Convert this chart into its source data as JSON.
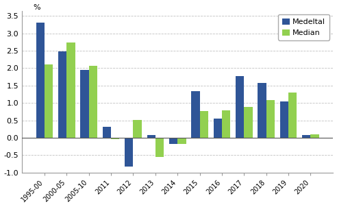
{
  "categories": [
    "1995-00",
    "2000-05",
    "2005-10",
    "2011",
    "2012",
    "2013",
    "2014",
    "2015",
    "2016",
    "2017",
    "2018",
    "2019",
    "2020"
  ],
  "medeltal": [
    3.3,
    2.47,
    1.95,
    0.32,
    -0.82,
    0.07,
    -0.18,
    1.33,
    0.54,
    1.77,
    1.58,
    1.04,
    0.07
  ],
  "median": [
    2.1,
    2.73,
    2.07,
    -0.05,
    0.52,
    -0.55,
    -0.17,
    0.77,
    0.78,
    0.88,
    1.08,
    1.3,
    0.1
  ],
  "medeltal_color": "#2f5597",
  "median_color": "#92d050",
  "pct_label": "%",
  "ylim": [
    -1.0,
    3.65
  ],
  "yticks": [
    -1.0,
    -0.5,
    0.0,
    0.5,
    1.0,
    1.5,
    2.0,
    2.5,
    3.0,
    3.5
  ],
  "ytick_labels": [
    "-1.0",
    "-0.5",
    "0.0",
    "0.5",
    "1.0",
    "1.5",
    "2.0",
    "2.5",
    "3.0",
    "3.5"
  ],
  "legend_labels": [
    "Medeltal",
    "Median"
  ],
  "grid_color": "#c0c0c0",
  "bar_width": 0.38
}
